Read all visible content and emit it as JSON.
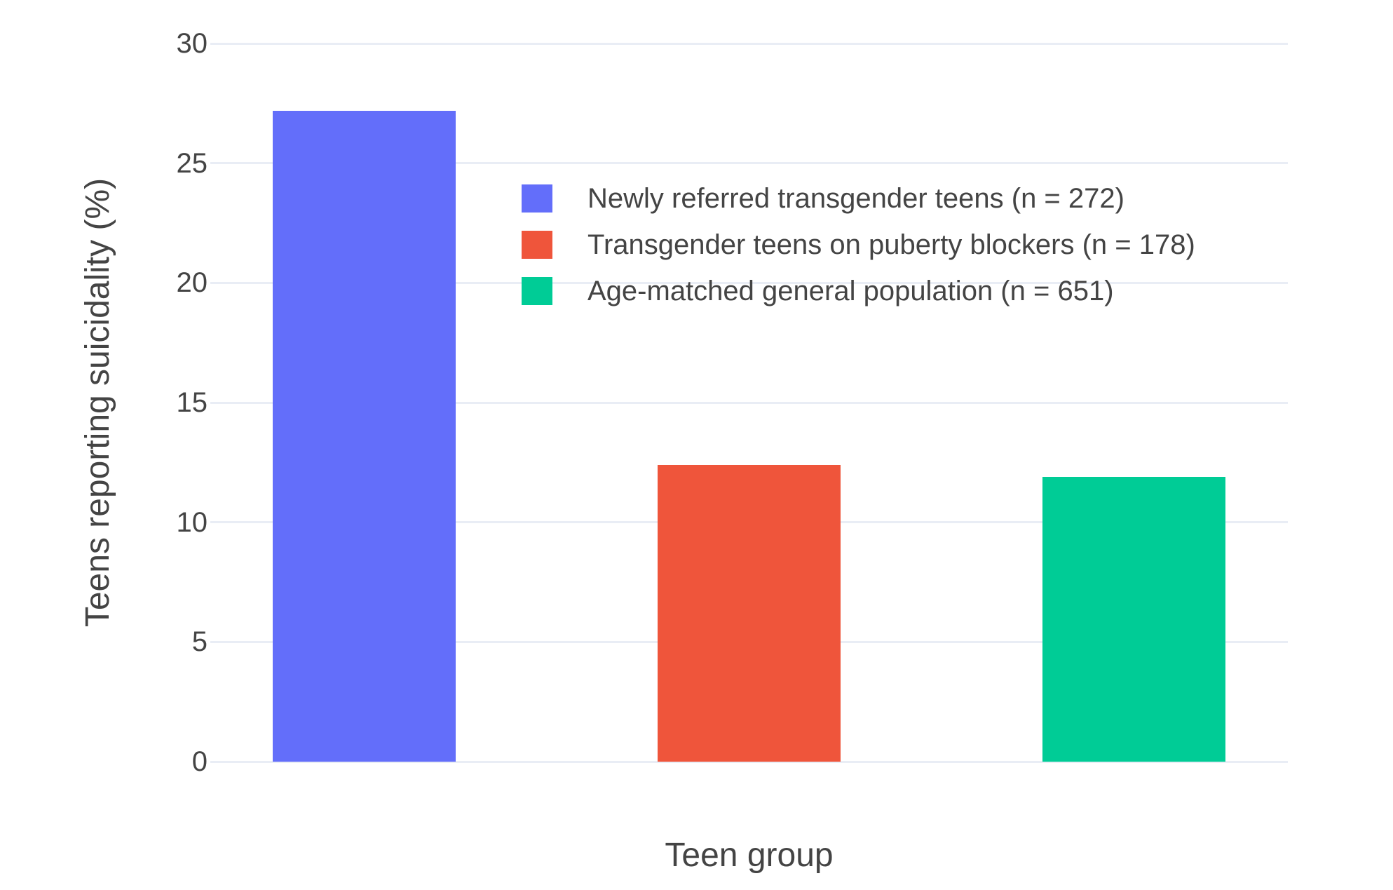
{
  "chart_data": {
    "type": "bar",
    "title": "",
    "xlabel": "Teen group",
    "ylabel": "Teens reporting suicidality (%)",
    "ylim": [
      0,
      30
    ],
    "yticks": [
      0,
      5,
      10,
      15,
      20,
      25,
      30
    ],
    "grid": true,
    "grid_color": "#E9EDF5",
    "background_color": "#ffffff",
    "text_color": "#444444",
    "legend_position": "inside-top-right",
    "series": [
      {
        "name": "Newly referred transgender teens (n = 272)",
        "value": 27.2,
        "color": "#636EFA"
      },
      {
        "name": "Transgender teens on puberty blockers (n = 178)",
        "value": 12.4,
        "color": "#EF553B"
      },
      {
        "name": "Age-matched general population (n = 651)",
        "value": 11.9,
        "color": "#00CC96"
      }
    ]
  }
}
